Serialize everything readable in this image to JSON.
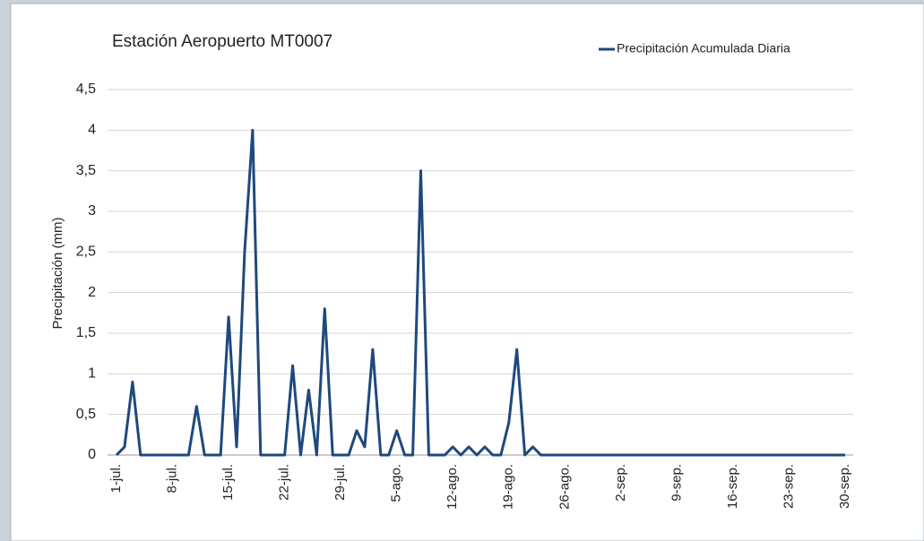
{
  "chart_data": {
    "type": "line",
    "title": "Estación  Aeropuerto MT0007",
    "y_label": "Precipitación (mm)",
    "categories": [
      "1-jul.",
      null,
      null,
      null,
      null,
      null,
      null,
      "8-jul.",
      null,
      null,
      null,
      null,
      null,
      null,
      "15-jul.",
      null,
      null,
      null,
      null,
      null,
      null,
      "22-jul.",
      null,
      null,
      null,
      null,
      null,
      null,
      "29-jul.",
      null,
      null,
      null,
      null,
      null,
      null,
      "5-ago.",
      null,
      null,
      null,
      null,
      null,
      null,
      "12-ago.",
      null,
      null,
      null,
      null,
      null,
      null,
      "19-ago.",
      null,
      null,
      null,
      null,
      null,
      null,
      "26-ago.",
      null,
      null,
      null,
      null,
      null,
      null,
      "2-sep.",
      null,
      null,
      null,
      null,
      null,
      null,
      "9-sep.",
      null,
      null,
      null,
      null,
      null,
      null,
      "16-sep.",
      null,
      null,
      null,
      null,
      null,
      null,
      "23-sep.",
      null,
      null,
      null,
      null,
      null,
      null,
      "30-sep."
    ],
    "series": [
      {
        "name": "Precipitación Acumulada Diaria",
        "color": "#1f497d",
        "values": [
          0,
          0.1,
          0.9,
          0,
          0,
          0,
          0,
          0,
          0,
          0,
          0.6,
          0,
          0,
          0,
          1.7,
          0.1,
          2.5,
          4,
          0,
          0,
          0,
          0,
          1.1,
          0,
          0.8,
          0,
          1.8,
          0,
          0,
          0,
          0.3,
          0.1,
          1.3,
          0,
          0,
          0.3,
          0,
          0,
          3.5,
          0,
          0,
          0,
          0.1,
          0,
          0.1,
          0,
          0.1,
          0,
          0,
          0.4,
          1.3,
          0,
          0.1,
          0,
          0,
          0,
          0,
          0,
          0,
          0,
          0,
          0,
          0,
          0,
          0,
          0,
          0,
          0,
          0,
          0,
          0,
          0,
          0,
          0,
          0,
          0,
          0,
          0,
          0,
          0,
          0,
          0,
          0,
          0,
          0,
          0,
          0,
          0,
          0,
          0,
          0,
          0
        ]
      }
    ],
    "ylim": [
      0,
      4.5
    ],
    "yticks": [
      0,
      {
        "value": 0.5,
        "label": "0,5"
      },
      1,
      {
        "value": 1.5,
        "label": "1,5"
      },
      2,
      {
        "value": 2.5,
        "label": "2,5"
      },
      3,
      {
        "value": 3.5,
        "label": "3,5"
      },
      4,
      {
        "value": 4.5,
        "label": "4,5"
      }
    ],
    "grid": true,
    "legend": "top-right"
  }
}
